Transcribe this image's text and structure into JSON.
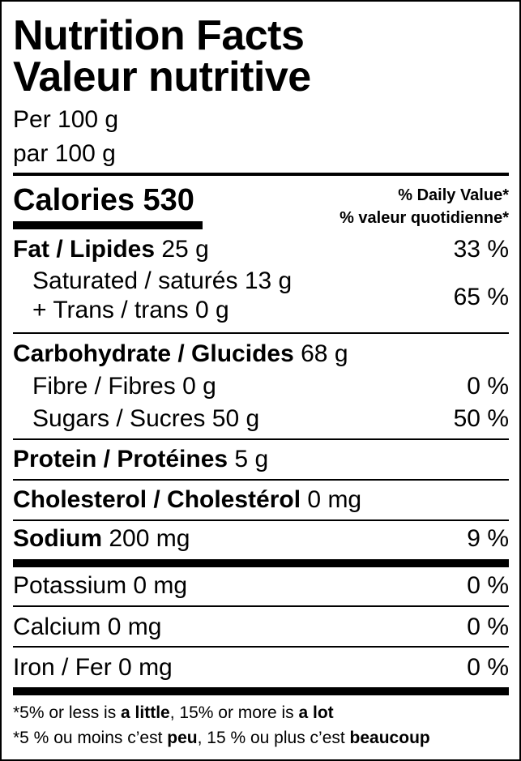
{
  "title_en": "Nutrition Facts",
  "title_fr": "Valeur nutritive",
  "serving_en": "Per 100 g",
  "serving_fr": "par 100 g",
  "calories": {
    "label": "Calories",
    "value": "530"
  },
  "daily_value_header": {
    "en": "% Daily Value*",
    "fr": "% valeur quotidienne*"
  },
  "nutrients": {
    "fat": {
      "label": "Fat / Lipides",
      "amount": "25 g",
      "dv": "33 %"
    },
    "saturated": {
      "label": "Saturated / saturés",
      "amount": "13 g"
    },
    "trans": {
      "label": "+ Trans / trans",
      "amount": "0 g"
    },
    "sat_trans_dv": "65 %",
    "carbohydrate": {
      "label": "Carbohydrate / Glucides",
      "amount": "68 g"
    },
    "fibre": {
      "label": "Fibre / Fibres",
      "amount": "0 g",
      "dv": "0 %"
    },
    "sugars": {
      "label": "Sugars / Sucres",
      "amount": "50 g",
      "dv": "50 %"
    },
    "protein": {
      "label": "Protein / Protéines",
      "amount": "5 g"
    },
    "cholesterol": {
      "label": "Cholesterol / Cholestérol",
      "amount": "0 mg"
    },
    "sodium": {
      "label": "Sodium",
      "amount": "200 mg",
      "dv": "9 %"
    },
    "potassium": {
      "label": "Potassium",
      "amount": "0 mg",
      "dv": "0 %"
    },
    "calcium": {
      "label": "Calcium",
      "amount": "0 mg",
      "dv": "0 %"
    },
    "iron": {
      "label": "Iron / Fer",
      "amount": "0 mg",
      "dv": "0 %"
    }
  },
  "footnote": {
    "en": {
      "a": "*5% or less is ",
      "b": "a little",
      "c": ", 15% or more is ",
      "d": "a lot"
    },
    "fr": {
      "a": "*5 % ou moins c’est ",
      "b": "peu",
      "c": ", 15 % ou plus c’est ",
      "d": "beaucoup"
    }
  }
}
